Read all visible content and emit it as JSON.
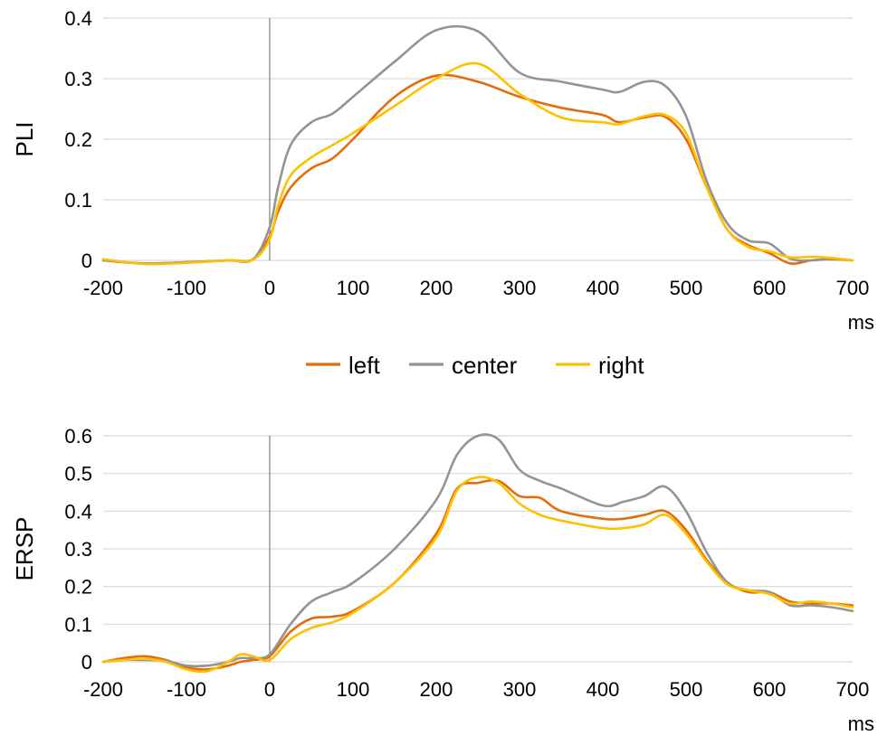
{
  "legend": [
    {
      "name": "left",
      "color": "#E46C0A"
    },
    {
      "name": "center",
      "color": "#949494"
    },
    {
      "name": "right",
      "color": "#FFC000"
    }
  ],
  "chart_data": [
    {
      "type": "line",
      "title": "",
      "xlabel": "ms",
      "ylabel": "PLI",
      "xlim": [
        -200,
        700
      ],
      "ylim": [
        0,
        0.4
      ],
      "xticks": [
        -200,
        -100,
        0,
        100,
        200,
        300,
        400,
        500,
        600,
        700
      ],
      "xtick_labels": [
        "-200",
        "-100",
        "0",
        "100",
        "200",
        "300",
        "400",
        "500",
        "600",
        "700"
      ],
      "yticks": [
        0,
        0.1,
        0.2,
        0.3,
        0.4
      ],
      "ytick_labels": [
        "0",
        "0.1",
        "0.2",
        "0.3",
        "0.4"
      ],
      "grid": true,
      "x": [
        -200,
        -150,
        -100,
        -50,
        -20,
        0,
        10,
        25,
        50,
        75,
        100,
        150,
        200,
        250,
        300,
        350,
        400,
        420,
        450,
        475,
        500,
        525,
        550,
        575,
        600,
        625,
        650,
        675,
        700
      ],
      "series": [
        {
          "name": "left",
          "color": "#E46C0A",
          "values": [
            0.0,
            -0.005,
            -0.003,
            0.0,
            0.002,
            0.04,
            0.08,
            0.12,
            0.152,
            0.168,
            0.2,
            0.27,
            0.305,
            0.295,
            0.27,
            0.252,
            0.24,
            0.228,
            0.236,
            0.237,
            0.2,
            0.12,
            0.05,
            0.025,
            0.012,
            -0.005,
            0.0,
            0.002,
            0.0
          ]
        },
        {
          "name": "center",
          "color": "#949494",
          "values": [
            0.0,
            -0.005,
            -0.003,
            0.0,
            0.002,
            0.055,
            0.12,
            0.19,
            0.228,
            0.242,
            0.27,
            0.328,
            0.38,
            0.378,
            0.31,
            0.295,
            0.282,
            0.278,
            0.295,
            0.288,
            0.238,
            0.13,
            0.06,
            0.033,
            0.028,
            0.003,
            0.0,
            0.003,
            0.0
          ]
        },
        {
          "name": "right",
          "color": "#FFC000",
          "values": [
            0.002,
            -0.006,
            -0.004,
            0.0,
            0.001,
            0.035,
            0.09,
            0.14,
            0.17,
            0.19,
            0.21,
            0.255,
            0.3,
            0.325,
            0.275,
            0.236,
            0.228,
            0.225,
            0.238,
            0.24,
            0.21,
            0.12,
            0.05,
            0.022,
            0.015,
            0.005,
            0.006,
            0.004,
            0.0
          ]
        }
      ]
    },
    {
      "type": "line",
      "title": "",
      "xlabel": "ms",
      "ylabel": "ERSP",
      "xlim": [
        -200,
        700
      ],
      "ylim": [
        0,
        0.6
      ],
      "xticks": [
        -200,
        -100,
        0,
        100,
        200,
        300,
        400,
        500,
        600,
        700
      ],
      "xtick_labels": [
        "-200",
        "-100",
        "0",
        "100",
        "200",
        "300",
        "400",
        "500",
        "600",
        "700"
      ],
      "yticks": [
        0,
        0.1,
        0.2,
        0.3,
        0.4,
        0.5,
        0.6
      ],
      "ytick_labels": [
        "0",
        "0.1",
        "0.2",
        "0.3",
        "0.4",
        "0.5",
        "0.6"
      ],
      "grid": true,
      "x": [
        -200,
        -175,
        -150,
        -125,
        -100,
        -75,
        -50,
        -35,
        -20,
        0,
        25,
        50,
        75,
        100,
        150,
        200,
        225,
        250,
        275,
        300,
        325,
        350,
        400,
        425,
        450,
        475,
        500,
        525,
        550,
        575,
        600,
        625,
        650,
        675,
        700
      ],
      "series": [
        {
          "name": "left",
          "color": "#E46C0A",
          "values": [
            0.0,
            0.01,
            0.015,
            0.005,
            -0.015,
            -0.02,
            -0.01,
            0.0,
            0.005,
            0.015,
            0.08,
            0.115,
            0.12,
            0.135,
            0.21,
            0.34,
            0.46,
            0.475,
            0.48,
            0.44,
            0.435,
            0.4,
            0.38,
            0.38,
            0.39,
            0.4,
            0.35,
            0.27,
            0.21,
            0.185,
            0.185,
            0.16,
            0.155,
            0.155,
            0.15
          ]
        },
        {
          "name": "center",
          "color": "#949494",
          "values": [
            0.0,
            0.005,
            0.005,
            0.003,
            -0.01,
            -0.01,
            0.0,
            0.01,
            0.01,
            0.02,
            0.1,
            0.16,
            0.185,
            0.21,
            0.3,
            0.43,
            0.55,
            0.6,
            0.59,
            0.51,
            0.48,
            0.46,
            0.415,
            0.425,
            0.44,
            0.465,
            0.4,
            0.29,
            0.21,
            0.19,
            0.185,
            0.15,
            0.15,
            0.145,
            0.135
          ]
        },
        {
          "name": "right",
          "color": "#FFC000",
          "values": [
            0.0,
            0.005,
            0.008,
            0.0,
            -0.02,
            -0.025,
            0.0,
            0.02,
            0.015,
            0.005,
            0.06,
            0.09,
            0.105,
            0.13,
            0.21,
            0.33,
            0.455,
            0.49,
            0.475,
            0.42,
            0.39,
            0.375,
            0.355,
            0.355,
            0.365,
            0.39,
            0.34,
            0.265,
            0.205,
            0.19,
            0.18,
            0.155,
            0.16,
            0.155,
            0.145
          ]
        }
      ]
    }
  ]
}
